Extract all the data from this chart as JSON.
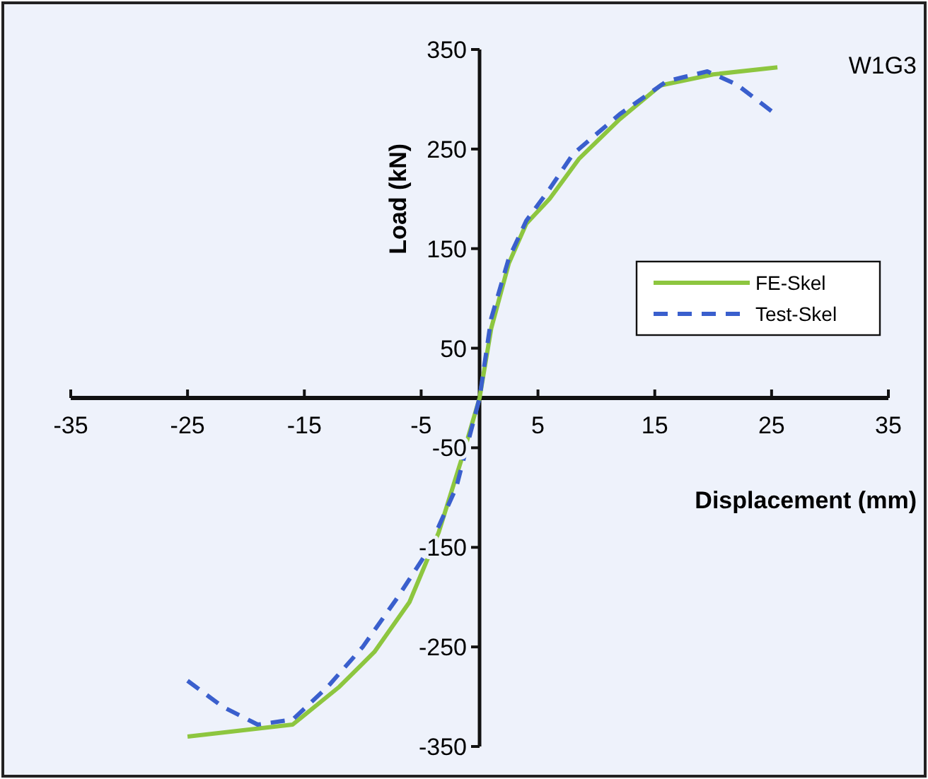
{
  "chart_data": {
    "type": "line",
    "xlabel": "Displacement (mm)",
    "ylabel": "Load (kN)",
    "annotations": [
      "W1G3"
    ],
    "xlim": [
      -35,
      35
    ],
    "xticks": [
      -35,
      -25,
      -15,
      -5,
      5,
      15,
      25,
      35
    ],
    "ylim": [
      -350,
      350
    ],
    "yticks": [
      -350,
      -250,
      -150,
      -50,
      50,
      150,
      250,
      350
    ],
    "grid": false,
    "legend": "right",
    "series": [
      {
        "name": "FE-Skel",
        "color": "#8dc63f",
        "line_style": "solid",
        "x": [
          -25,
          -16,
          -12,
          -9,
          -6,
          -3.5,
          -1.5,
          0,
          1,
          2.5,
          4,
          6,
          8.5,
          12,
          15.5,
          20,
          25.5
        ],
        "values": [
          -340,
          -328,
          -290,
          -255,
          -205,
          -135,
          -60,
          0,
          70,
          135,
          175,
          200,
          240,
          280,
          314,
          325,
          332
        ]
      },
      {
        "name": "Test-Skel",
        "color": "#3a5fcd",
        "line_style": "dashed",
        "x": [
          -25,
          -22,
          -19,
          -16,
          -13,
          -10,
          -7,
          -4.5,
          -2,
          0,
          1,
          2.5,
          4,
          6,
          8,
          12,
          16,
          19.5,
          22,
          25
        ],
        "values": [
          -284,
          -310,
          -328,
          -323,
          -290,
          -250,
          -200,
          -155,
          -90,
          0,
          80,
          140,
          178,
          210,
          245,
          285,
          318,
          328,
          315,
          288
        ]
      }
    ]
  }
}
